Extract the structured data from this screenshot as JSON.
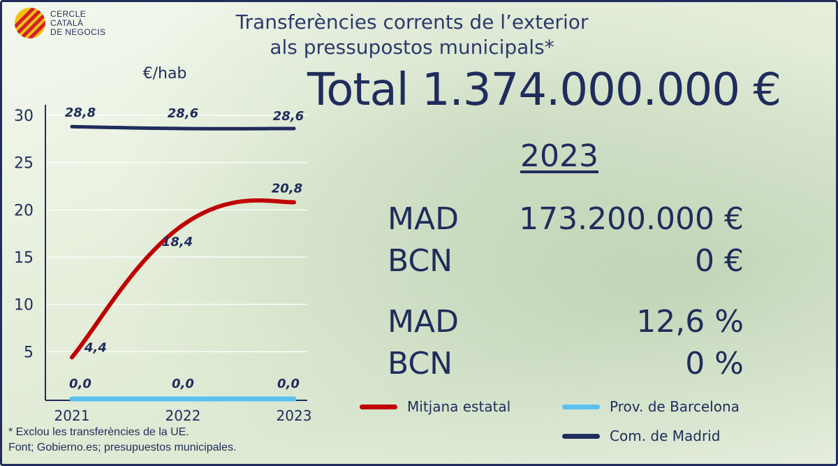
{
  "brand": {
    "name": "CERCLE\nCATALÀ\nDE NEGOCIS",
    "colors": {
      "navy": "#1f2c5c",
      "red": "#c00000",
      "lightblue": "#5bc0f0"
    }
  },
  "headline": {
    "title_line1": "Transferències corrents de l’exterior",
    "title_line2": "als pressupostos municipals*",
    "total": "Total 1.374.000.000 €",
    "year": "2023"
  },
  "stats": [
    {
      "label": "MAD",
      "value": "173.200.000 €"
    },
    {
      "label": "BCN",
      "value": "0 €"
    },
    {
      "label": "MAD",
      "value": "12,6 %"
    },
    {
      "label": "BCN",
      "value": "0 %"
    }
  ],
  "chart_data": {
    "type": "line",
    "ylabel": "€/hab",
    "x": [
      "2021",
      "2022",
      "2023"
    ],
    "ylim": [
      0,
      30
    ],
    "yticks": [
      "5",
      "10",
      "15",
      "20",
      "25",
      "30"
    ],
    "series": [
      {
        "name": "Mitjana estatal",
        "color": "#c00000",
        "values": [
          4.4,
          18.4,
          20.8
        ],
        "labels": [
          "4,4",
          "18,4",
          "20,8"
        ]
      },
      {
        "name": "Prov. de Barcelona",
        "color": "#5bc0f0",
        "values": [
          0.0,
          0.0,
          0.0
        ],
        "labels": [
          "0,0",
          "0,0",
          "0,0"
        ]
      },
      {
        "name": "Com. de Madrid",
        "color": "#1f2c5c",
        "values": [
          28.8,
          28.6,
          28.6
        ],
        "labels": [
          "28,8",
          "28,6",
          "28,6"
        ]
      }
    ],
    "grid": true,
    "legend_position": "bottom-right"
  },
  "footnotes": {
    "line1": "* Exclou les transferències de la UE.",
    "line2": "Font; Gobierno.es; presupuestos municipales."
  }
}
